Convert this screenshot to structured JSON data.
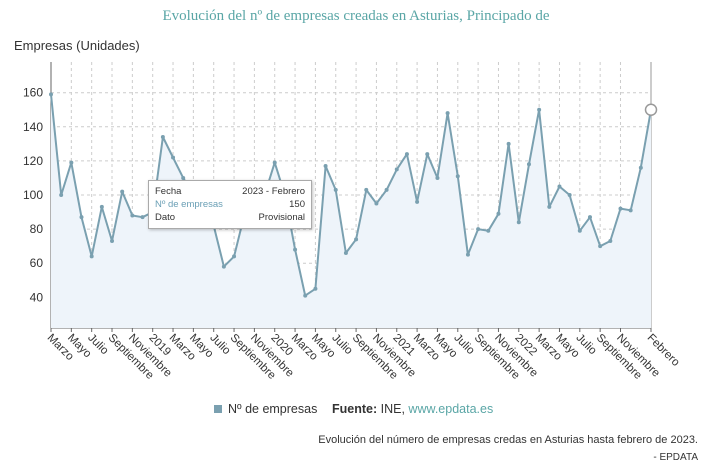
{
  "title": "Evolución del nº de empresas creadas en Asturias, Principado de",
  "legend": {
    "label": "Nº de empresas",
    "color": "#7aa0b0"
  },
  "source": {
    "label": "Fuente:",
    "text": "INE, ",
    "link": "www.epdata.es"
  },
  "caption": "Evolución del número de empresas credas en Asturias hasta febrero de 2023.",
  "credit": "- EPDATA",
  "tooltip": {
    "rows": [
      {
        "key": "Fecha",
        "value": "2023 - Febrero"
      },
      {
        "key": "Nº de empresas",
        "value": "150"
      },
      {
        "key": "Dato",
        "value": "Provisional"
      }
    ]
  },
  "chart_data": {
    "type": "line",
    "ylabel": "Empresas (Unidades)",
    "ylim": [
      22,
      178
    ],
    "yticks": [
      40,
      60,
      80,
      100,
      120,
      140,
      160
    ],
    "grid": true,
    "line_color": "#7aa0b0",
    "x": [
      "2018-Mar",
      "2018-Apr",
      "2018-May",
      "2018-Jun",
      "2018-Jul",
      "2018-Aug",
      "2018-Sep",
      "2018-Oct",
      "2018-Nov",
      "2018-Dec",
      "2019-Jan",
      "2019-Feb",
      "2019-Mar",
      "2019-Apr",
      "2019-May",
      "2019-Jun",
      "2019-Jul",
      "2019-Aug",
      "2019-Sep",
      "2019-Oct",
      "2019-Nov",
      "2019-Dec",
      "2020-Jan",
      "2020-Feb",
      "2020-Mar",
      "2020-Apr",
      "2020-May",
      "2020-Jun",
      "2020-Jul",
      "2020-Aug",
      "2020-Sep",
      "2020-Oct",
      "2020-Nov",
      "2020-Dec",
      "2021-Jan",
      "2021-Feb",
      "2021-Mar",
      "2021-Apr",
      "2021-May",
      "2021-Jun",
      "2021-Jul",
      "2021-Aug",
      "2021-Sep",
      "2021-Oct",
      "2021-Nov",
      "2021-Dec",
      "2022-Jan",
      "2022-Feb",
      "2022-Mar",
      "2022-Apr",
      "2022-May",
      "2022-Jun",
      "2022-Jul",
      "2022-Aug",
      "2022-Sep",
      "2022-Oct",
      "2022-Nov",
      "2022-Dec",
      "2023-Jan",
      "2023-Feb"
    ],
    "values": [
      159,
      100,
      119,
      87,
      64,
      93,
      73,
      102,
      88,
      87,
      90,
      134,
      122,
      110,
      100,
      92,
      82,
      58,
      64,
      88,
      95,
      100,
      119,
      100,
      68,
      41,
      45,
      117,
      103,
      66,
      74,
      103,
      95,
      103,
      115,
      124,
      96,
      124,
      110,
      148,
      111,
      65,
      80,
      79,
      89,
      130,
      84,
      118,
      150,
      93,
      105,
      100,
      79,
      87,
      70,
      73,
      92,
      91,
      116,
      150
    ],
    "tick_labels": [
      "Marzo",
      "Mayo",
      "Julio",
      "Septiembre",
      "Noviembre",
      "2019",
      "Marzo",
      "Mayo",
      "Julio",
      "Septiembre",
      "Noviembre",
      "2020",
      "Marzo",
      "Mayo",
      "Julio",
      "Septiembre",
      "Noviembre",
      "2021",
      "Marzo",
      "Mayo",
      "Julio",
      "Septiembre",
      "Noviembre",
      "2022",
      "Marzo",
      "Mayo",
      "Julio",
      "Septiembre",
      "Noviembre",
      "Febrero"
    ],
    "tick_label_points": [
      "2018-Mar",
      "2018-May",
      "2018-Jul",
      "2018-Sep",
      "2018-Nov",
      "2019-Jan",
      "2019-Mar",
      "2019-May",
      "2019-Jul",
      "2019-Sep",
      "2019-Nov",
      "2020-Jan",
      "2020-Mar",
      "2020-May",
      "2020-Jul",
      "2020-Sep",
      "2020-Nov",
      "2021-Jan",
      "2021-Mar",
      "2021-May",
      "2021-Jul",
      "2021-Sep",
      "2021-Nov",
      "2022-Jan",
      "2022-Mar",
      "2022-May",
      "2022-Jul",
      "2022-Sep",
      "2022-Nov",
      "2023-Feb"
    ],
    "highlight": "2023-Feb"
  }
}
